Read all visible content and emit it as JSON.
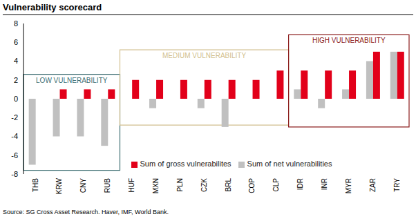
{
  "chart_data": {
    "type": "bar",
    "title": "Vulnerability scorecard",
    "source": "Source: SG Cross Asset Research. Haver, IMF, World Bank.",
    "categories": [
      "THB",
      "KRW",
      "CNY",
      "RUB",
      "HUF",
      "MXN",
      "PLN",
      "CZK",
      "BRL",
      "COP",
      "CLP",
      "IDR",
      "INR",
      "MYR",
      "ZAR",
      "TRY"
    ],
    "series": [
      {
        "name": "Sum of net vulnerabilities",
        "color": "#c0c0c0",
        "values": [
          -7,
          -4,
          -4,
          -5,
          0,
          -1,
          0,
          -1,
          -3,
          0,
          0,
          1,
          -1,
          1,
          4,
          5
        ]
      },
      {
        "name": "Sum of gross vulnerabilites",
        "color": "#e2001a",
        "values": [
          0,
          1,
          1,
          1,
          2,
          2,
          2,
          2,
          2,
          2,
          3,
          3,
          3,
          3,
          5,
          5
        ]
      }
    ],
    "ylim": [
      -8,
      8
    ],
    "yticks": [
      -8,
      -6,
      -4,
      -2,
      0,
      2,
      4,
      6,
      8
    ],
    "grid": false,
    "legend": "bottom",
    "annotations": [
      {
        "text": "LOW VULNERABILITY",
        "from": "THB",
        "to": "RUB",
        "ylim": [
          -7.6,
          2.6
        ],
        "color": "#3d6e72"
      },
      {
        "text": "MEDIUM VULNERABILITY",
        "from": "HUF",
        "to": "CLP",
        "ylim": [
          -2.8,
          5.2
        ],
        "color": "#d2bf8e"
      },
      {
        "text": "HIGH VULNERABILITY",
        "from": "IDR",
        "to": "TRY",
        "ylim": [
          -3,
          6.8
        ],
        "color": "#8b1c1c"
      }
    ]
  }
}
